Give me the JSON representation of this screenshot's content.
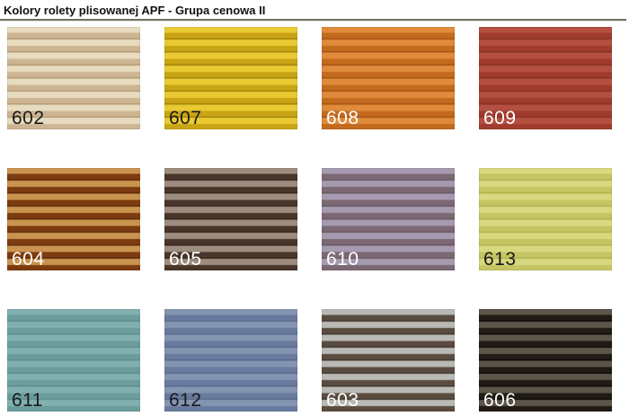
{
  "page": {
    "title": "Kolory rolety plisowanej APF - Grupa cenowa II"
  },
  "swatches": [
    {
      "code": "602",
      "light": "#e7dbc0",
      "dark": "#cdb593",
      "edge": "#b49a74",
      "label_color": "#1a1a1a"
    },
    {
      "code": "607",
      "light": "#e9ca33",
      "dark": "#c9a414",
      "edge": "#a2830c",
      "label_color": "#1a1a1a"
    },
    {
      "code": "608",
      "light": "#e08b3b",
      "dark": "#c46a1e",
      "edge": "#a55213",
      "label_color": "#ffffff"
    },
    {
      "code": "609",
      "light": "#b35041",
      "dark": "#a03b2e",
      "edge": "#873024",
      "label_color": "#ffffff"
    },
    {
      "code": "604",
      "light": "#c9944f",
      "dark": "#7d3b10",
      "edge": "#5e2b0a",
      "label_color": "#ffffff"
    },
    {
      "code": "605",
      "light": "#9d8d7e",
      "dark": "#4a352a",
      "edge": "#362620",
      "label_color": "#ffffff"
    },
    {
      "code": "610",
      "light": "#a69ab0",
      "dark": "#7b6873",
      "edge": "#695862",
      "label_color": "#ffffff"
    },
    {
      "code": "613",
      "light": "#d8d880",
      "dark": "#c5c563",
      "edge": "#b1b150",
      "label_color": "#1a1a1a"
    },
    {
      "code": "611",
      "light": "#82afaf",
      "dark": "#6b9d9d",
      "edge": "#5c8e8e",
      "label_color": "#1a1a1a"
    },
    {
      "code": "612",
      "light": "#8495b2",
      "dark": "#687b9e",
      "edge": "#586b8d",
      "label_color": "#1a1a1a"
    },
    {
      "code": "603",
      "light": "#b9b9b5",
      "dark": "#5a4d40",
      "edge": "#41382e",
      "label_color": "#ffffff"
    },
    {
      "code": "606",
      "light": "#5c554a",
      "dark": "#201b14",
      "edge": "#0d0a06",
      "label_color": "#ffffff"
    }
  ]
}
